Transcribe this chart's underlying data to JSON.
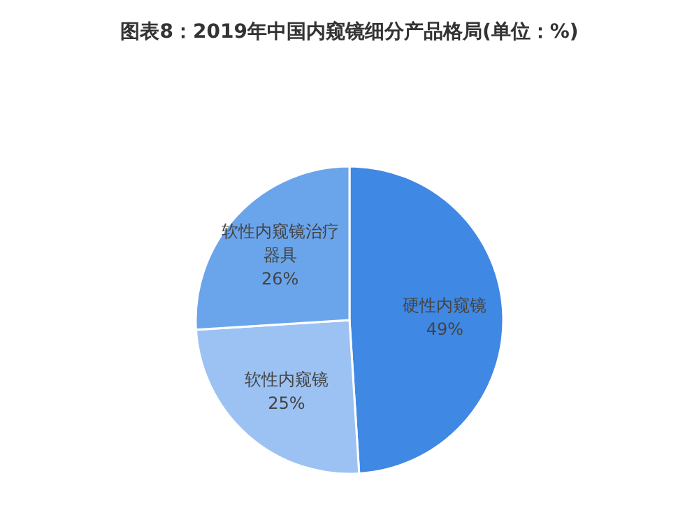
{
  "chart_data": {
    "type": "pie",
    "title": "图表8：2019年中国内窥镜细分产品格局(单位：%)",
    "categories": [
      "硬性内窥镜",
      "软性内窥镜",
      "软性内窥镜治疗器具"
    ],
    "values": [
      49,
      25,
      26
    ],
    "colors": [
      "#3f88e3",
      "#9cc2f3",
      "#6aa5ec"
    ],
    "value_labels": [
      "49%",
      "25%",
      "26%"
    ],
    "legend": false
  }
}
